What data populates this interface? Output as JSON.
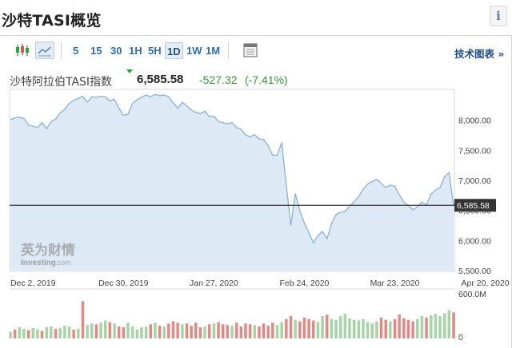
{
  "page": {
    "title": "沙特TASI概览",
    "info_label": "i"
  },
  "toolbar": {
    "candle_icon": "candlestick-icon",
    "area_icon": "area-chart-icon",
    "timeframes": [
      "5",
      "15",
      "30",
      "1H",
      "5H",
      "1D",
      "1W",
      "1M"
    ],
    "active_timeframe": "1D",
    "calendar_icon": "calendar-icon",
    "tech_chart_label": "技术图表 »"
  },
  "quote": {
    "name": "沙特阿拉伯TASI指数",
    "price": "6,585.58",
    "change": "-527.32",
    "change_pct": "(-7.41%)"
  },
  "watermark": {
    "text_cn": "英为财情",
    "text_en": "Investing",
    "text_suffix": ".com"
  },
  "colors": {
    "area_fill": "#dde9f4",
    "line": "#86b2d9",
    "up_bar": "#a6d4a6",
    "down_bar": "#e08a86",
    "price_line": "#333333",
    "positive": "#2e9a31",
    "link": "#2f6db5"
  },
  "chart_data": {
    "type": "area",
    "ylim": [
      5500,
      8500
    ],
    "y_ticks": [
      "8,000.00",
      "7,500.00",
      "7,000.00",
      "6,500.00",
      "6,000.00",
      "5,500.00"
    ],
    "y_tick_values": [
      8000,
      7500,
      7000,
      6500,
      6000,
      5500
    ],
    "x_ticks": [
      "Dec 2, 2019",
      "Dec 30, 2019",
      "Jan 27, 2020",
      "Feb 24, 2020",
      "Mar 23, 2020",
      "Apr 20, 2020"
    ],
    "x_tick_index": [
      5,
      25,
      45,
      65,
      85,
      105
    ],
    "current_value": 6585.58,
    "current_label": "6,585.58",
    "values": [
      8010,
      8040,
      8050,
      8030,
      7920,
      7900,
      7880,
      7960,
      7860,
      7980,
      8020,
      8120,
      8180,
      8280,
      8330,
      8360,
      8400,
      8300,
      8390,
      8380,
      8400,
      8390,
      8320,
      8350,
      8200,
      8080,
      8100,
      8280,
      8340,
      8380,
      8420,
      8390,
      8430,
      8410,
      8420,
      8390,
      8290,
      8200,
      8300,
      8240,
      8170,
      8130,
      8110,
      8150,
      8060,
      8070,
      7980,
      7960,
      7940,
      7960,
      7880,
      7850,
      7760,
      7720,
      7760,
      7690,
      7680,
      7580,
      7420,
      7420,
      7630,
      6930,
      6250,
      6780,
      6500,
      6290,
      6130,
      5960,
      6080,
      6150,
      6030,
      6280,
      6430,
      6470,
      6480,
      6570,
      6650,
      6730,
      6850,
      6940,
      6980,
      7020,
      6950,
      6880,
      6920,
      6900,
      6760,
      6640,
      6580,
      6510,
      6560,
      6640,
      6590,
      6770,
      6840,
      6880,
      7060,
      7130,
      6580
    ],
    "volume_label": "600.0M",
    "volume_zero": "0",
    "volume_max_m": 600,
    "volumes_m": [
      90,
      120,
      150,
      130,
      110,
      140,
      120,
      100,
      150,
      160,
      130,
      140,
      170,
      160,
      120,
      130,
      500,
      180,
      200,
      190,
      210,
      240,
      220,
      200,
      160,
      150,
      210,
      160,
      120,
      150,
      160,
      190,
      210,
      170,
      160,
      200,
      230,
      210,
      190,
      200,
      170,
      210,
      150,
      160,
      190,
      200,
      220,
      190,
      180,
      170,
      210,
      160,
      200,
      190,
      180,
      160,
      200,
      170,
      210,
      180,
      220,
      260,
      300,
      250,
      230,
      280,
      260,
      240,
      220,
      300,
      320,
      260,
      250,
      300,
      330,
      270,
      250,
      240,
      260,
      220,
      200,
      230,
      280,
      250,
      230,
      260,
      320,
      270,
      250,
      230,
      260,
      300,
      280,
      310,
      330,
      300,
      340,
      380,
      350
    ],
    "volume_down": [
      0,
      1,
      0,
      0,
      1,
      0,
      0,
      1,
      0,
      0,
      1,
      0,
      0,
      0,
      1,
      0,
      1,
      0,
      0,
      1,
      0,
      0,
      1,
      0,
      1,
      1,
      0,
      0,
      0,
      0,
      0,
      1,
      0,
      1,
      0,
      1,
      1,
      1,
      0,
      1,
      1,
      1,
      1,
      0,
      1,
      0,
      1,
      1,
      1,
      0,
      1,
      1,
      1,
      1,
      0,
      1,
      1,
      1,
      1,
      0,
      0,
      1,
      1,
      0,
      1,
      1,
      1,
      1,
      0,
      0,
      1,
      0,
      0,
      0,
      0,
      0,
      0,
      0,
      0,
      0,
      0,
      0,
      1,
      1,
      0,
      1,
      1,
      1,
      1,
      1,
      0,
      0,
      1,
      0,
      0,
      0,
      0,
      0,
      1
    ]
  }
}
